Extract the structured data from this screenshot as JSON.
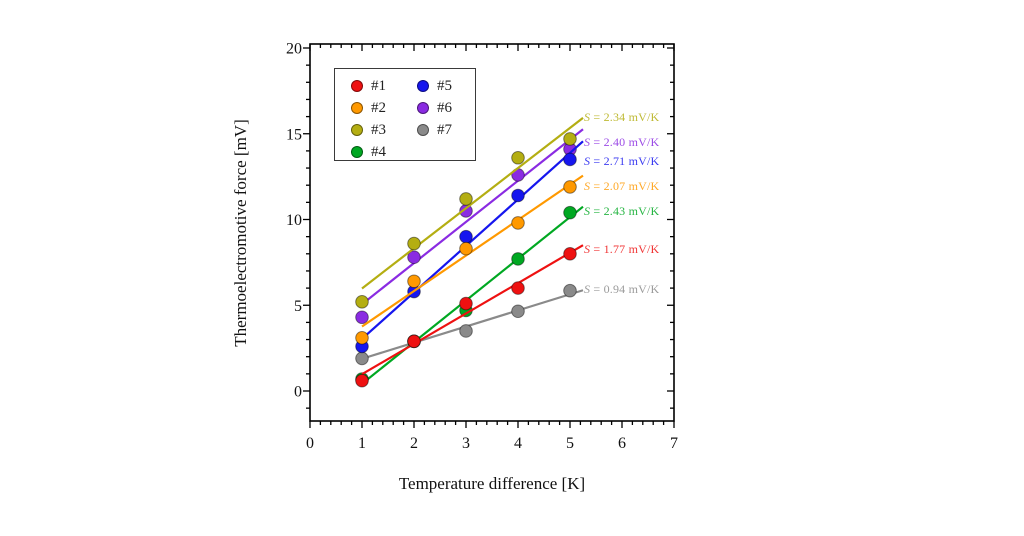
{
  "figure": {
    "y_axis": {
      "label": "Thermoelectromotive force [mV]",
      "min": 0,
      "max": 20,
      "major_ticks": [
        0,
        5,
        10,
        15,
        20
      ],
      "minor_step": 1
    },
    "x_axis": {
      "label": "Temperature difference [K]",
      "min": 0,
      "max": 7,
      "major_ticks": [
        0,
        1,
        2,
        3,
        4,
        5,
        6,
        7
      ],
      "minor_step": 0.2
    }
  },
  "chart_data": {
    "type": "scatter",
    "title": "",
    "x": [
      1,
      2,
      3,
      4,
      5
    ],
    "xlabel": "Temperature difference [K]",
    "ylabel": "Thermoelectromotive force [mV]",
    "xlim": [
      0,
      7
    ],
    "ylim": [
      0,
      20
    ],
    "grid": false,
    "legend_position": "upper-left-inside",
    "series": [
      {
        "name": "#1",
        "color": "#ee1111",
        "values": [
          0.6,
          2.9,
          5.1,
          6.0,
          8.0
        ],
        "slope": 1.77,
        "slope_label": "S = 1.77 mV/K"
      },
      {
        "name": "#2",
        "color": "#ff9900",
        "values": [
          3.1,
          6.4,
          8.3,
          9.8,
          11.9
        ],
        "slope": 2.07,
        "slope_label": "S = 2.07 mV/K"
      },
      {
        "name": "#3",
        "color": "#b4ae12",
        "values": [
          5.2,
          8.6,
          11.2,
          13.6,
          14.7
        ],
        "slope": 2.34,
        "slope_label": "S = 2.34 mV/K"
      },
      {
        "name": "#4",
        "color": "#00a822",
        "values": [
          0.7,
          2.9,
          4.7,
          7.7,
          10.4
        ],
        "slope": 2.43,
        "slope_label": "S = 2.43 mV/K"
      },
      {
        "name": "#5",
        "color": "#1616ee",
        "values": [
          2.6,
          5.8,
          9.0,
          11.4,
          13.5
        ],
        "slope": 2.71,
        "slope_label": "S = 2.71 mV/K"
      },
      {
        "name": "#6",
        "color": "#8a2be2",
        "values": [
          4.3,
          7.8,
          10.5,
          12.6,
          14.1
        ],
        "slope": 2.4,
        "slope_label": "S = 2.40 mV/K"
      },
      {
        "name": "#7",
        "color": "#8a8a8a",
        "values": [
          1.9,
          2.9,
          3.5,
          4.65,
          5.85
        ],
        "slope": 0.94,
        "slope_label": "S = 0.94 mV/K"
      }
    ]
  }
}
